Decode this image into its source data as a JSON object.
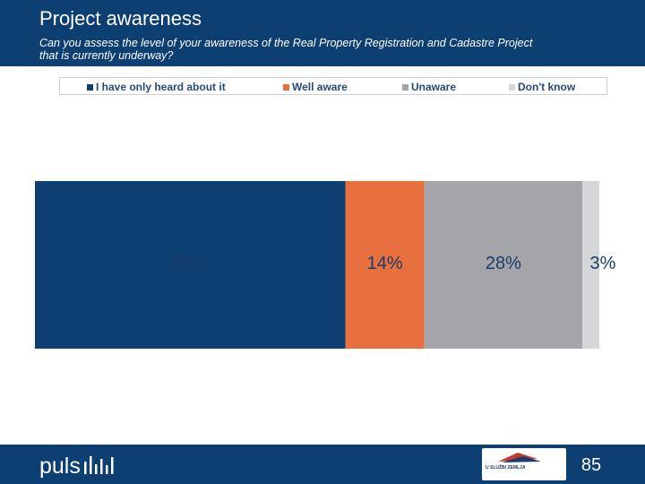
{
  "slide": {
    "title": "Project awareness",
    "question_line1": "Can you assess the level of your awareness of the Real Property Registration and Cadastre Project",
    "question_line2": "that is currently underway?",
    "page_number": "85"
  },
  "footer": {
    "logo_text": "puls",
    "partner_logo_text": "U SLUŽBI ZEMLJA"
  },
  "colors": {
    "header": "#0d3f72",
    "heard": "#0d3f72",
    "well_aware": "#e8703f",
    "unaware": "#a3a5a9",
    "dont_know": "#d5d6d8"
  },
  "chart_data": {
    "type": "bar",
    "orientation": "horizontal",
    "stacked": true,
    "normalized": true,
    "legend_position": "top",
    "series": [
      {
        "name": "I have only heard about it",
        "value": 55,
        "label": "55%",
        "color": "#0d3f72"
      },
      {
        "name": "Well aware",
        "value": 14,
        "label": "14%",
        "color": "#e8703f"
      },
      {
        "name": "Unaware",
        "value": 28,
        "label": "28%",
        "color": "#a3a5a9"
      },
      {
        "name": "Don't know",
        "value": 3,
        "label": "3%",
        "color": "#d5d6d8"
      }
    ]
  }
}
